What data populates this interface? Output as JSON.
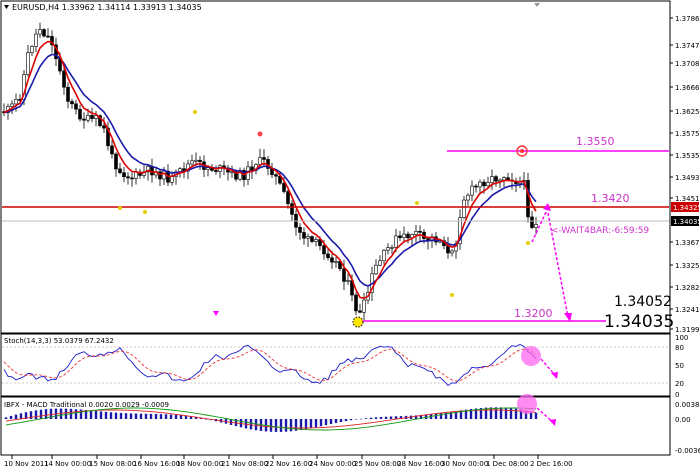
{
  "header": {
    "symbol_info": "EURUSD,H4  1.33962 1.34114 1.33913 1.34035"
  },
  "price_axis": {
    "ticks": [
      "1.37860",
      "1.37475",
      "1.37080",
      "1.36660",
      "1.36250",
      "1.35750",
      "1.35350",
      "1.34935",
      "1.34510",
      "1.34325",
      "1.34035",
      "1.33670",
      "1.33250",
      "1.32820",
      "1.32410",
      "1.31990"
    ],
    "current_price_label": "1.34035",
    "level_label": "1.34325"
  },
  "annotations": {
    "level_1355": "1.3550",
    "level_1342": "1.3420",
    "level_1320": "1.3200",
    "wait_bar": "<-WAIT4BAR:-6:59:59",
    "big_price_1": "1.34052",
    "big_price_2": "1.34035"
  },
  "stoch": {
    "label": "Stoch(14,3,3) 53.0379 67.2432",
    "ticks": [
      "100",
      "80",
      "50",
      "20",
      "0"
    ]
  },
  "macd": {
    "label": "IBFX - MACD Traditional 0.0020 0.0029 -0.0009",
    "ticks": [
      "0.0038",
      "0.00",
      "-0.0036"
    ]
  },
  "time_axis": {
    "labels": [
      "10 Nov 2011",
      "14 Nov 00:00",
      "15 Nov 08:00",
      "16 Nov 16:00",
      "18 Nov 00:00",
      "21 Nov 08:00",
      "22 Nov 16:00",
      "24 Nov 00:00",
      "25 Nov 08:00",
      "28 Nov 16:00",
      "30 Nov 00:00",
      "1 Dec 08:00",
      "2 Dec 16:00"
    ]
  },
  "colors": {
    "background": "#ffffff",
    "candle": "#000000",
    "ma_fast": "#dd0000",
    "ma_slow": "#1a1aaa",
    "magenta": "#ff00ff",
    "level_red": "#cc0000",
    "annotation_text": "#cc33cc"
  }
}
